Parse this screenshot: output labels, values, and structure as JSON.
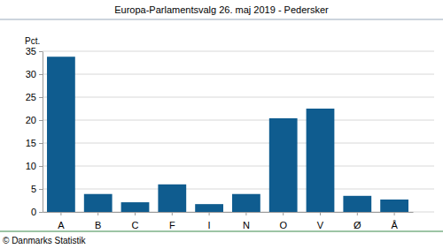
{
  "chart_data": {
    "type": "bar",
    "title": "Europa-Parlamentsvalg 26. maj 2019 - Pedersker",
    "y_label": "Pct.",
    "annotations": [
      "© Danmarks Statistik"
    ],
    "categories": [
      "A",
      "B",
      "C",
      "F",
      "I",
      "N",
      "O",
      "V",
      "Ø",
      "Å"
    ],
    "values": [
      33.8,
      3.9,
      2.1,
      6.0,
      1.7,
      3.9,
      20.4,
      22.5,
      3.5,
      2.7
    ],
    "color": "#0f5c8f",
    "ylim": [
      0,
      35
    ],
    "yticks": [
      0,
      5,
      10,
      15,
      20,
      25,
      30,
      35
    ],
    "grid": true
  }
}
